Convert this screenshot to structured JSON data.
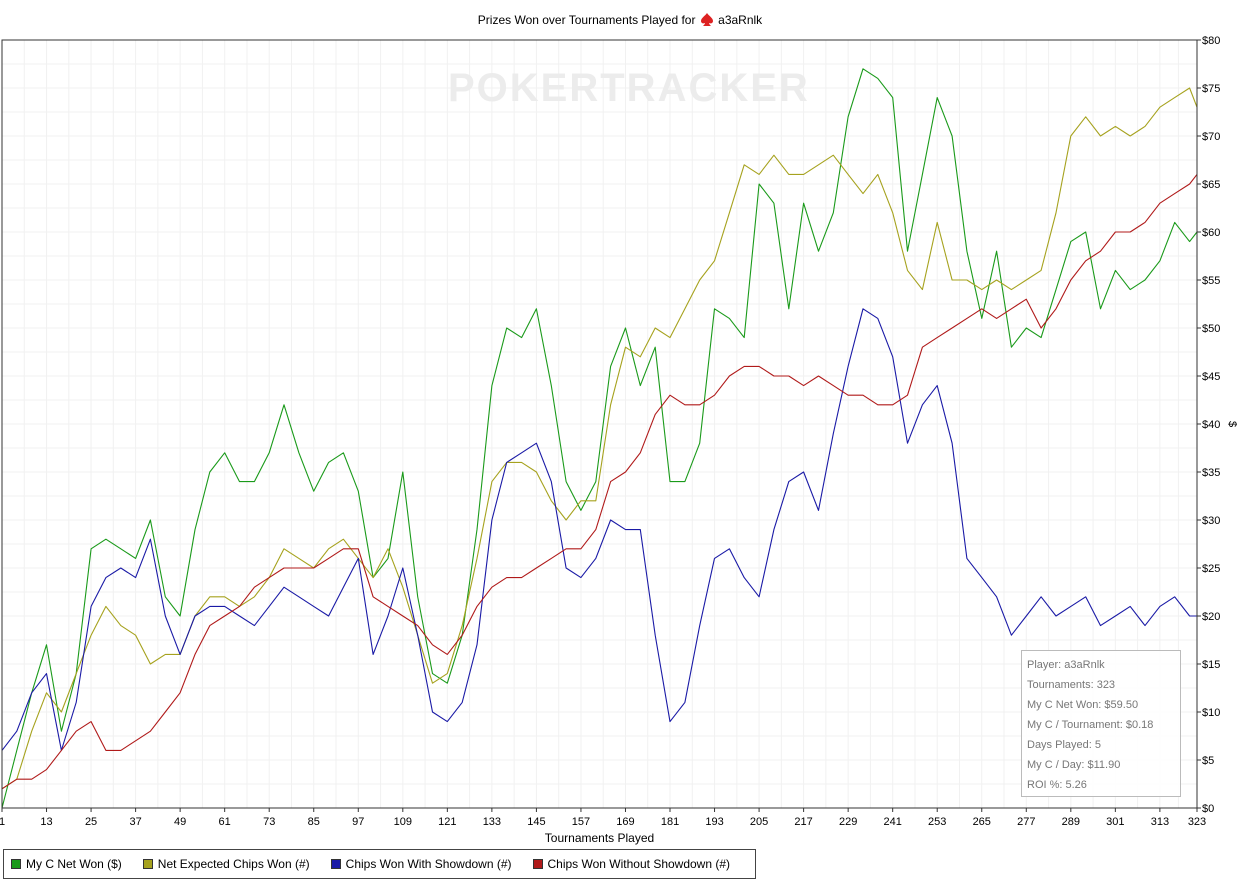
{
  "title_prefix": "Prizes Won over Tournaments Played for",
  "player_name": "a3aRnlk",
  "watermark": "POKERTRACKER",
  "tooltip": {
    "lines": [
      "Player: a3aRnlk",
      "Tournaments: 323",
      "My C Net Won: $59.50",
      "My C / Tournament: $0.18",
      "Days Played: 5",
      "My C / Day: $11.90",
      "ROI %: 5.26"
    ]
  },
  "legend": [
    {
      "label": "My C Net Won ($)",
      "color": "#1a9a1a"
    },
    {
      "label": "Net Expected Chips Won (#)",
      "color": "#a6a21e"
    },
    {
      "label": "Chips Won With Showdown (#)",
      "color": "#1a1aa6"
    },
    {
      "label": "Chips Won Without Showdown (#)",
      "color": "#b01a1a"
    }
  ],
  "chart_data": {
    "type": "line",
    "title": "Prizes Won over Tournaments Played for a3aRnlk",
    "xlabel": "Tournaments Played",
    "ylabel": "$",
    "xlim": [
      1,
      323
    ],
    "ylim": [
      0,
      80
    ],
    "x_ticks": [
      "1",
      "13",
      "25",
      "37",
      "49",
      "61",
      "73",
      "85",
      "97",
      "109",
      "121",
      "133",
      "145",
      "157",
      "169",
      "181",
      "193",
      "205",
      "217",
      "229",
      "241",
      "253",
      "265",
      "277",
      "289",
      "301",
      "313",
      "323"
    ],
    "y_ticks": [
      "$0",
      "$5",
      "$10",
      "$15",
      "$20",
      "$25",
      "$30",
      "$35",
      "$40",
      "$45",
      "$50",
      "$55",
      "$60",
      "$65",
      "$70",
      "$75",
      "$80"
    ],
    "grid": true,
    "legend_position": "bottom-left",
    "series": [
      {
        "name": "My C Net Won ($)",
        "color": "#1a9a1a",
        "x": [
          1,
          5,
          9,
          13,
          17,
          21,
          25,
          29,
          33,
          37,
          41,
          45,
          49,
          53,
          57,
          61,
          65,
          69,
          73,
          77,
          81,
          85,
          89,
          93,
          97,
          101,
          105,
          109,
          113,
          117,
          121,
          125,
          129,
          133,
          137,
          141,
          145,
          149,
          153,
          157,
          161,
          165,
          169,
          173,
          177,
          181,
          185,
          189,
          193,
          197,
          201,
          205,
          209,
          213,
          217,
          221,
          225,
          229,
          233,
          237,
          241,
          245,
          249,
          253,
          257,
          261,
          265,
          269,
          273,
          277,
          281,
          285,
          289,
          293,
          297,
          301,
          305,
          309,
          313,
          317,
          321,
          323
        ],
        "values": [
          0,
          6,
          12,
          17,
          8,
          14,
          27,
          28,
          27,
          26,
          30,
          22,
          20,
          29,
          35,
          37,
          34,
          34,
          37,
          42,
          37,
          33,
          36,
          37,
          33,
          24,
          26,
          35,
          22,
          14,
          13,
          18,
          29,
          44,
          50,
          49,
          52,
          44,
          34,
          31,
          34,
          46,
          50,
          44,
          48,
          34,
          34,
          38,
          52,
          51,
          49,
          65,
          63,
          52,
          63,
          58,
          62,
          72,
          77,
          76,
          74,
          58,
          66,
          74,
          70,
          58,
          51,
          58,
          48,
          50,
          49,
          54,
          59,
          60,
          52,
          56,
          54,
          55,
          57,
          61,
          59,
          60
        ]
      },
      {
        "name": "Net Expected Chips Won (#)",
        "color": "#a6a21e",
        "x": [
          1,
          5,
          9,
          13,
          17,
          21,
          25,
          29,
          33,
          37,
          41,
          45,
          49,
          53,
          57,
          61,
          65,
          69,
          73,
          77,
          81,
          85,
          89,
          93,
          97,
          101,
          105,
          109,
          113,
          117,
          121,
          125,
          129,
          133,
          137,
          141,
          145,
          149,
          153,
          157,
          161,
          165,
          169,
          173,
          177,
          181,
          185,
          189,
          193,
          197,
          201,
          205,
          209,
          213,
          217,
          221,
          225,
          229,
          233,
          237,
          241,
          245,
          249,
          253,
          257,
          261,
          265,
          269,
          273,
          277,
          281,
          285,
          289,
          293,
          297,
          301,
          305,
          309,
          313,
          317,
          321,
          323
        ],
        "values": [
          2,
          3,
          8,
          12,
          10,
          14,
          18,
          21,
          19,
          18,
          15,
          16,
          16,
          20,
          22,
          22,
          21,
          22,
          24,
          27,
          26,
          25,
          27,
          28,
          26,
          24,
          27,
          23,
          18,
          13,
          14,
          19,
          26,
          34,
          36,
          36,
          35,
          32,
          30,
          32,
          32,
          42,
          48,
          47,
          50,
          49,
          52,
          55,
          57,
          62,
          67,
          66,
          68,
          66,
          66,
          67,
          68,
          66,
          64,
          66,
          62,
          56,
          54,
          61,
          55,
          55,
          54,
          55,
          54,
          55,
          56,
          62,
          70,
          72,
          70,
          71,
          70,
          71,
          73,
          74,
          75,
          73
        ]
      },
      {
        "name": "Chips Won With Showdown (#)",
        "color": "#1a1aa6",
        "x": [
          1,
          5,
          9,
          13,
          17,
          21,
          25,
          29,
          33,
          37,
          41,
          45,
          49,
          53,
          57,
          61,
          65,
          69,
          73,
          77,
          81,
          85,
          89,
          93,
          97,
          101,
          105,
          109,
          113,
          117,
          121,
          125,
          129,
          133,
          137,
          141,
          145,
          149,
          153,
          157,
          161,
          165,
          169,
          173,
          177,
          181,
          185,
          189,
          193,
          197,
          201,
          205,
          209,
          213,
          217,
          221,
          225,
          229,
          233,
          237,
          241,
          245,
          249,
          253,
          257,
          261,
          265,
          269,
          273,
          277,
          281,
          285,
          289,
          293,
          297,
          301,
          305,
          309,
          313,
          317,
          321,
          323
        ],
        "values": [
          6,
          8,
          12,
          14,
          6,
          11,
          21,
          24,
          25,
          24,
          28,
          20,
          16,
          20,
          21,
          21,
          20,
          19,
          21,
          23,
          22,
          21,
          20,
          23,
          26,
          16,
          20,
          25,
          18,
          10,
          9,
          11,
          17,
          30,
          36,
          37,
          38,
          34,
          25,
          24,
          26,
          30,
          29,
          29,
          18,
          9,
          11,
          19,
          26,
          27,
          24,
          22,
          29,
          34,
          35,
          31,
          39,
          46,
          52,
          51,
          47,
          38,
          42,
          44,
          38,
          26,
          24,
          22,
          18,
          20,
          22,
          20,
          21,
          22,
          19,
          20,
          21,
          19,
          21,
          22,
          20,
          20
        ]
      },
      {
        "name": "Chips Won Without Showdown (#)",
        "color": "#b01a1a",
        "x": [
          1,
          5,
          9,
          13,
          17,
          21,
          25,
          29,
          33,
          37,
          41,
          45,
          49,
          53,
          57,
          61,
          65,
          69,
          73,
          77,
          81,
          85,
          89,
          93,
          97,
          101,
          105,
          109,
          113,
          117,
          121,
          125,
          129,
          133,
          137,
          141,
          145,
          149,
          153,
          157,
          161,
          165,
          169,
          173,
          177,
          181,
          185,
          189,
          193,
          197,
          201,
          205,
          209,
          213,
          217,
          221,
          225,
          229,
          233,
          237,
          241,
          245,
          249,
          253,
          257,
          261,
          265,
          269,
          273,
          277,
          281,
          285,
          289,
          293,
          297,
          301,
          305,
          309,
          313,
          317,
          321,
          323
        ],
        "values": [
          2,
          3,
          3,
          4,
          6,
          8,
          9,
          6,
          6,
          7,
          8,
          10,
          12,
          16,
          19,
          20,
          21,
          23,
          24,
          25,
          25,
          25,
          26,
          27,
          27,
          22,
          21,
          20,
          19,
          17,
          16,
          18,
          21,
          23,
          24,
          24,
          25,
          26,
          27,
          27,
          29,
          34,
          35,
          37,
          41,
          43,
          42,
          42,
          43,
          45,
          46,
          46,
          45,
          45,
          44,
          45,
          44,
          43,
          43,
          42,
          42,
          43,
          48,
          49,
          50,
          51,
          52,
          51,
          52,
          53,
          50,
          52,
          55,
          57,
          58,
          60,
          60,
          61,
          63,
          64,
          65,
          66
        ]
      }
    ]
  }
}
